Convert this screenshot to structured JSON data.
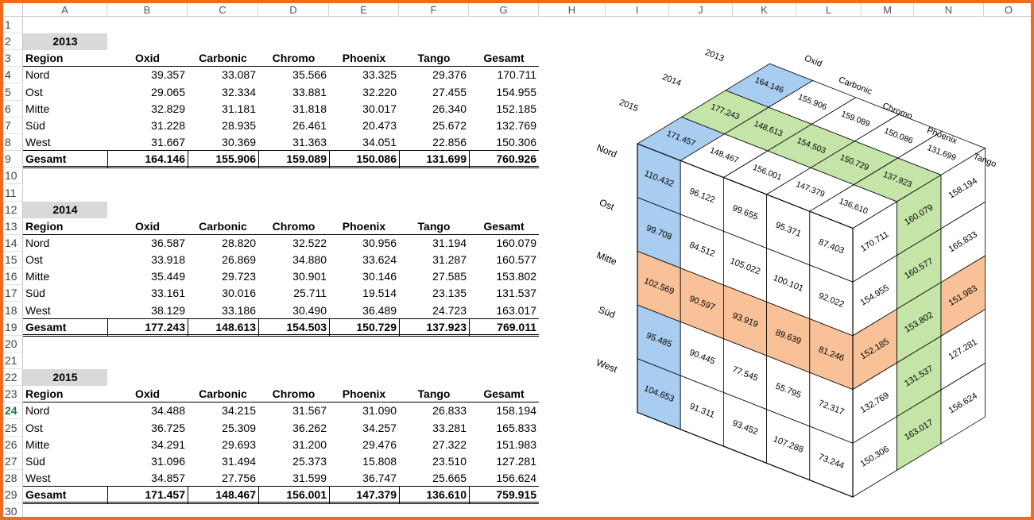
{
  "columns": [
    "A",
    "B",
    "C",
    "D",
    "E",
    "F",
    "G",
    "H",
    "I",
    "J",
    "K",
    "L",
    "M",
    "N",
    "O"
  ],
  "rows": [
    "1",
    "2",
    "3",
    "4",
    "5",
    "6",
    "7",
    "8",
    "9",
    "10",
    "11",
    "12",
    "13",
    "14",
    "15",
    "16",
    "17",
    "18",
    "19",
    "20",
    "21",
    "22",
    "23",
    "24",
    "25",
    "26",
    "27",
    "28",
    "29",
    "30"
  ],
  "tables": [
    {
      "year": "2013",
      "headers": [
        "Region",
        "Oxid",
        "Carbonic",
        "Chromo",
        "Phoenix",
        "Tango",
        "Gesamt"
      ],
      "rows": [
        [
          "Nord",
          "39.357",
          "33.087",
          "35.566",
          "33.325",
          "29.376",
          "170.711"
        ],
        [
          "Ost",
          "29.065",
          "32.334",
          "33.881",
          "32.220",
          "27.455",
          "154.955"
        ],
        [
          "Mitte",
          "32.829",
          "31.181",
          "31.818",
          "30.017",
          "26.340",
          "152.185"
        ],
        [
          "Süd",
          "31.228",
          "28.935",
          "26.461",
          "20.473",
          "25.672",
          "132.769"
        ],
        [
          "West",
          "31.667",
          "30.369",
          "31.363",
          "34.051",
          "22.856",
          "150.306"
        ]
      ],
      "total": [
        "Gesamt",
        "164.146",
        "155.906",
        "159.089",
        "150.086",
        "131.699",
        "760.926"
      ]
    },
    {
      "year": "2014",
      "headers": [
        "Region",
        "Oxid",
        "Carbonic",
        "Chromo",
        "Phoenix",
        "Tango",
        "Gesamt"
      ],
      "rows": [
        [
          "Nord",
          "36.587",
          "28.820",
          "32.522",
          "30.956",
          "31.194",
          "160.079"
        ],
        [
          "Ost",
          "33.918",
          "26.869",
          "34.880",
          "33.624",
          "31.287",
          "160.577"
        ],
        [
          "Mitte",
          "35.449",
          "29.723",
          "30.901",
          "30.146",
          "27.585",
          "153.802"
        ],
        [
          "Süd",
          "33.161",
          "30.016",
          "25.711",
          "19.514",
          "23.135",
          "131.537"
        ],
        [
          "West",
          "38.129",
          "33.186",
          "30.490",
          "36.489",
          "24.723",
          "163.017"
        ]
      ],
      "total": [
        "Gesamt",
        "177.243",
        "148.613",
        "154.503",
        "150.729",
        "137.923",
        "769.011"
      ]
    },
    {
      "year": "2015",
      "headers": [
        "Region",
        "Oxid",
        "Carbonic",
        "Chromo",
        "Phoenix",
        "Tango",
        "Gesamt"
      ],
      "rows": [
        [
          "Nord",
          "34.488",
          "34.215",
          "31.567",
          "31.090",
          "26.833",
          "158.194"
        ],
        [
          "Ost",
          "36.725",
          "25.309",
          "36.262",
          "34.257",
          "33.281",
          "165.833"
        ],
        [
          "Mitte",
          "34.291",
          "29.693",
          "31.200",
          "29.476",
          "27.322",
          "151.983"
        ],
        [
          "Süd",
          "31.096",
          "31.494",
          "25.373",
          "15.808",
          "23.510",
          "127.281"
        ],
        [
          "West",
          "34.857",
          "27.756",
          "31.599",
          "36.747",
          "25.665",
          "156.624"
        ]
      ],
      "total": [
        "Gesamt",
        "171.457",
        "148.467",
        "156.001",
        "147.379",
        "136.610",
        "759.915"
      ]
    }
  ],
  "cube": {
    "year_labels": [
      "2013",
      "2014",
      "2015"
    ],
    "product_labels": [
      "Oxid",
      "Carbonic",
      "Chromo",
      "Phoenix",
      "Tango"
    ],
    "region_labels": [
      "Nord",
      "Ost",
      "Mitte",
      "Süd",
      "West"
    ],
    "front_total_col": [
      "110.432",
      "99.708",
      "102.569",
      "95.485",
      "104.653"
    ],
    "front": [
      [
        "96.122",
        "99.655",
        "95.371",
        "87.403"
      ],
      [
        "84.512",
        "105.022",
        "100.101",
        "92.022"
      ],
      [
        "90.597",
        "93.919",
        "89.639",
        "81.246"
      ],
      [
        "90.445",
        "77.545",
        "55.795",
        "72.317"
      ],
      [
        "91.311",
        "93.452",
        "107.288",
        "73.244"
      ]
    ],
    "top": [
      [
        "",
        "164.146",
        "155.906",
        "159.089",
        "150.086",
        "131.699"
      ],
      [
        "177.243",
        "148.613",
        "154.503",
        "150.729",
        "137.923"
      ],
      [
        "171.457",
        "148.467",
        "156.001",
        "147.379",
        "136.610"
      ]
    ],
    "right": [
      [
        "170.711",
        "160.079",
        "158.194"
      ],
      [
        "154.955",
        "160.577",
        "165.833"
      ],
      [
        "152.185",
        "153.802",
        "151.983"
      ],
      [
        "132.769",
        "131.537",
        "127.281"
      ],
      [
        "150.306",
        "163.017",
        "156.624"
      ]
    ],
    "colors": {
      "blue": "#a9cdf0",
      "green": "#c4e4a8",
      "orange": "#f8c198",
      "frame": "#f26b1d"
    }
  }
}
